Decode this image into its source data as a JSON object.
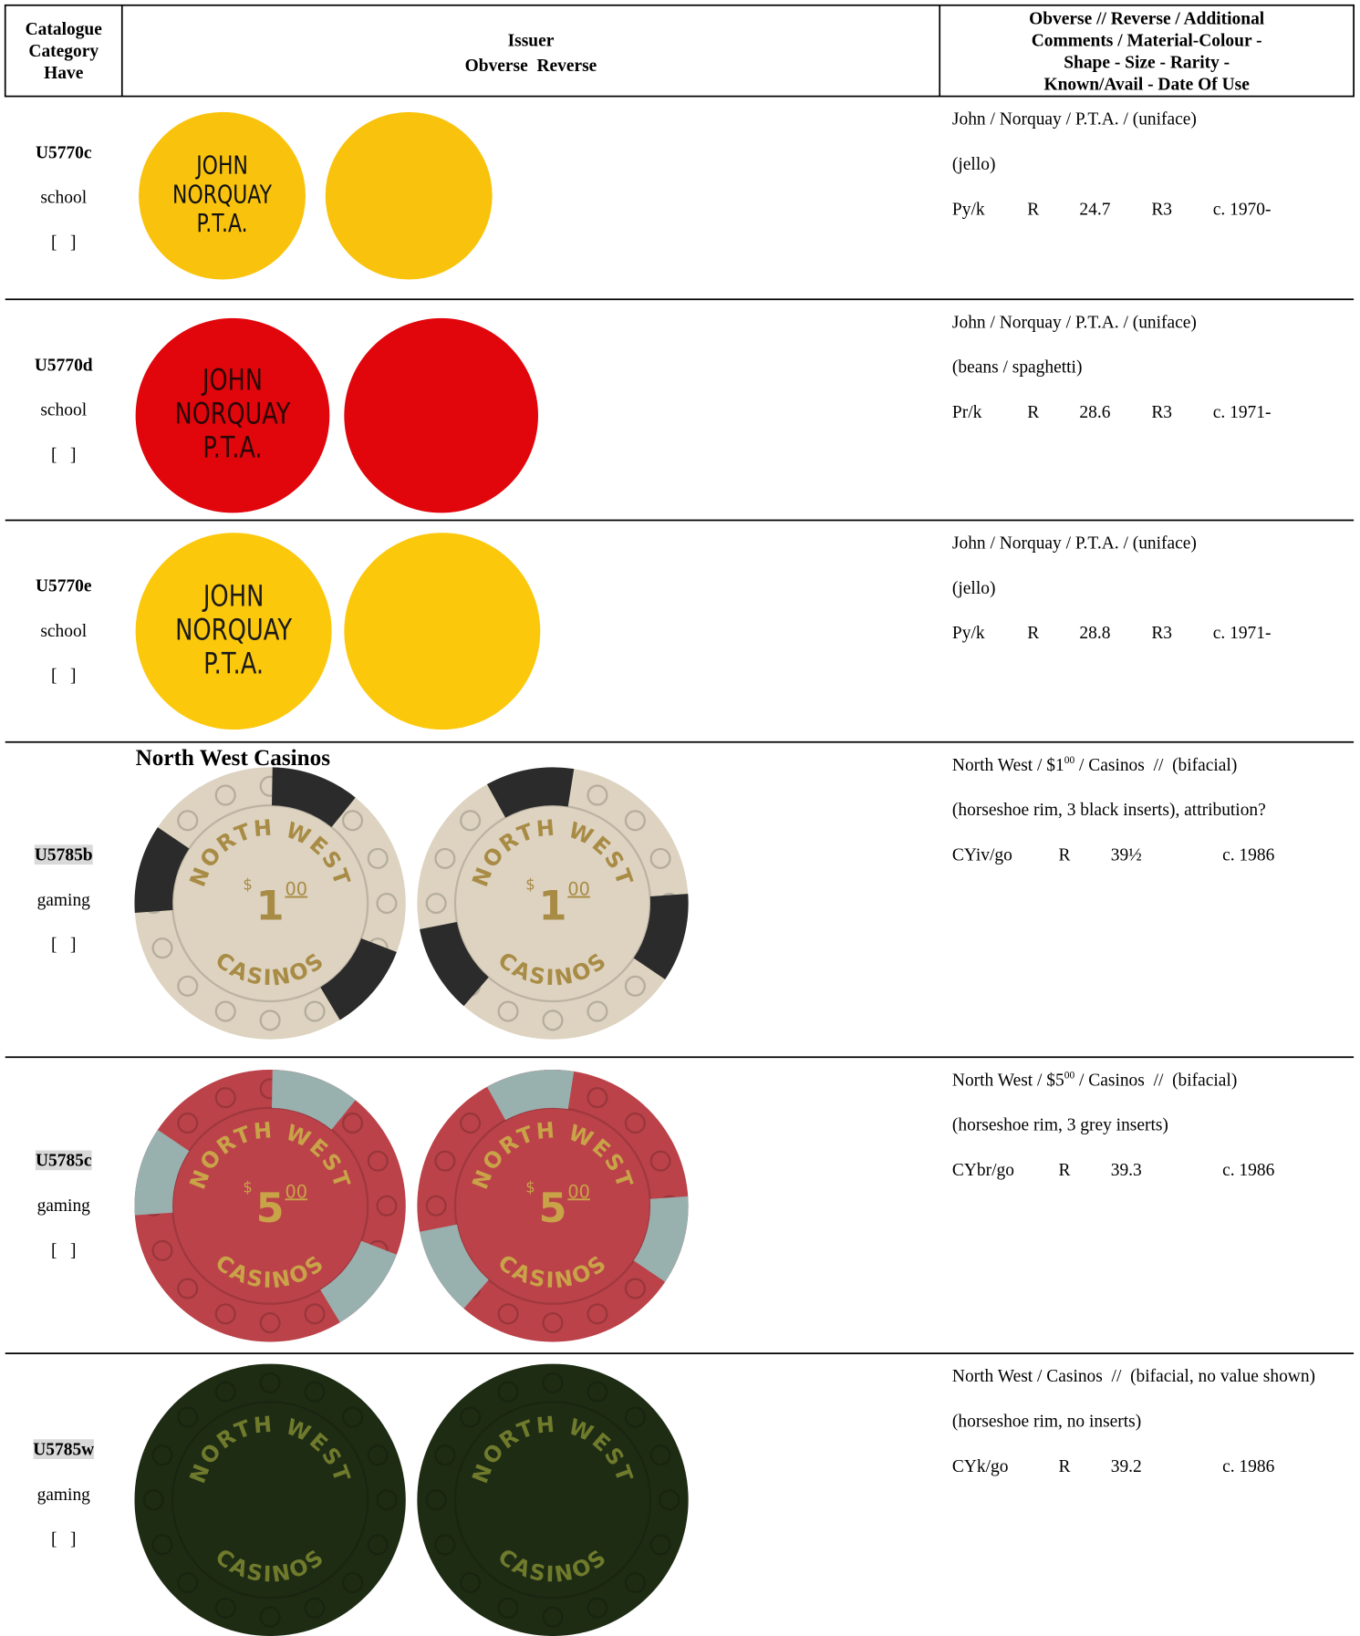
{
  "header": {
    "col1": [
      "Catalogue",
      "Category",
      "Have"
    ],
    "col2": [
      "Issuer",
      "Obverse  Reverse"
    ],
    "col3": [
      "Obverse // Reverse  / Additional",
      "Comments / Material-Colour -",
      "Shape -  Size -  Rarity -",
      "Known/Avail - Date Of Use"
    ]
  },
  "rows": [
    {
      "code": "U5770c",
      "highlight": false,
      "category": "school",
      "have": "[   ]",
      "chip": {
        "style": "plain",
        "face": "#f9c30d",
        "text_color": "#111",
        "lines": [
          "JOHN",
          "NORQUAY",
          "P.T.A."
        ]
      },
      "description": [
        [
          {
            "text": "John / Norquay / P.T.A. / (uniface)"
          }
        ],
        [
          {
            "text": "(jello)"
          }
        ]
      ],
      "details": [
        "Py/k",
        "R",
        "24.7",
        "R3",
        "c. 1970-"
      ]
    },
    {
      "code": "U5770d",
      "highlight": false,
      "category": "school",
      "have": "[   ]",
      "chip": {
        "style": "plain",
        "face": "#e0060c",
        "text_color": "#2a0606",
        "lines": [
          "JOHN",
          "NORQUAY",
          "P.T.A."
        ]
      },
      "description": [
        [
          {
            "text": "John / Norquay / P.T.A. / (uniface)"
          }
        ],
        [
          {
            "text": "(beans / spaghetti)"
          }
        ]
      ],
      "details": [
        "Pr/k",
        "R",
        "28.6",
        "R3",
        "c. 1971-"
      ]
    },
    {
      "code": "U5770e",
      "highlight": false,
      "category": "school",
      "have": "[   ]",
      "chip": {
        "style": "plain",
        "face": "#fcc80c",
        "text_color": "#1a1a1a",
        "lines": [
          "JOHN",
          "NORQUAY",
          "P.T.A."
        ]
      },
      "description": [
        [
          {
            "text": "John / Norquay / P.T.A. / (uniface)"
          }
        ],
        [
          {
            "text": "(jello)"
          }
        ]
      ],
      "details": [
        "Py/k",
        "R",
        "28.8",
        "R3",
        "c. 1971-"
      ]
    },
    {
      "code": "U5785b",
      "highlight": true,
      "category": "gaming",
      "have": "[   ]",
      "issuer": "North West Casinos",
      "chip": {
        "style": "casino",
        "face": "#ddd3c0",
        "insert": "#2b2b2b",
        "text_color": "#a88b45",
        "top": "NORTH WEST",
        "bottom": "CASINOS",
        "currency": "$",
        "amount": "1",
        "cents": "00"
      },
      "description": [
        [
          {
            "text": "North West / $1"
          },
          {
            "text": "00",
            "sup": true
          },
          {
            "text": " / Casinos  //  (bifacial)"
          }
        ],
        [
          {
            "text": "(horseshoe rim, 3 black inserts), attribution?"
          }
        ]
      ],
      "details": [
        "CYiv/go",
        "R",
        "39½",
        "c. 1986"
      ]
    },
    {
      "code": "U5785c",
      "highlight": true,
      "category": "gaming",
      "have": "[   ]",
      "chip": {
        "style": "casino",
        "face": "#bb4249",
        "insert": "#98b0ae",
        "text_color": "#c9a348",
        "top": "NORTH WEST",
        "bottom": "CASINOS",
        "currency": "$",
        "amount": "5",
        "cents": "00"
      },
      "description": [
        [
          {
            "text": "North West / $5"
          },
          {
            "text": "00",
            "sup": true
          },
          {
            "text": " / Casinos  //  (bifacial)"
          }
        ],
        [
          {
            "text": "(horseshoe rim, 3 grey inserts)"
          }
        ]
      ],
      "details": [
        "CYbr/go",
        "R",
        "39.3",
        "c. 1986"
      ]
    },
    {
      "code": "U5785w",
      "highlight": true,
      "category": "gaming",
      "have": "[   ]",
      "chip": {
        "style": "casino",
        "face": "#1e2c14",
        "text_color": "#6f7a2c",
        "top": "NORTH WEST",
        "bottom": "CASINOS"
      },
      "description": [
        [
          {
            "text": "North West / Casinos  //  (bifacial, no value shown)"
          }
        ],
        [
          {
            "text": "(horseshoe rim, no inserts)"
          }
        ]
      ],
      "details": [
        "CYk/go",
        "R",
        "39.2",
        "c. 1986"
      ]
    }
  ]
}
